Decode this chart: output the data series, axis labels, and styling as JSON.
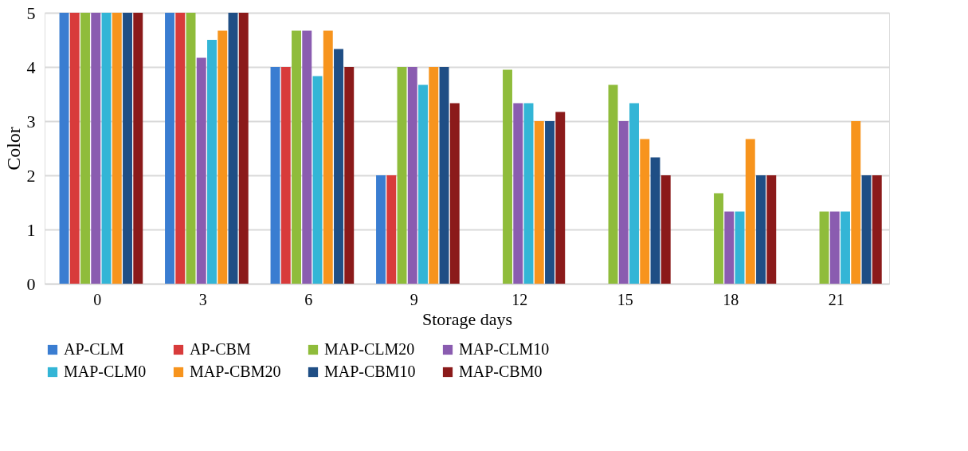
{
  "chart_data": {
    "type": "bar",
    "xlabel": "Storage days",
    "ylabel": "Color",
    "categories": [
      "0",
      "3",
      "6",
      "9",
      "12",
      "15",
      "18",
      "21"
    ],
    "ylim": [
      0,
      5
    ],
    "yticks": [
      0,
      1,
      2,
      3,
      4,
      5
    ],
    "grid": "y",
    "legend": "bottom",
    "series": [
      {
        "name": "AP-CLM",
        "color": "#3a7dd1",
        "values": [
          5,
          5,
          4,
          2,
          null,
          null,
          null,
          null
        ]
      },
      {
        "name": "AP-CBM",
        "color": "#d83b3b",
        "values": [
          5,
          5,
          4,
          2,
          null,
          null,
          null,
          null
        ]
      },
      {
        "name": "MAP-CLM20",
        "color": "#8fbc3b",
        "values": [
          5,
          5,
          4.67,
          4,
          3.95,
          3.67,
          1.67,
          1.33
        ]
      },
      {
        "name": "MAP-CLM10",
        "color": "#8a5cb0",
        "values": [
          5,
          4.17,
          4.67,
          4,
          3.33,
          3,
          1.33,
          1.33
        ]
      },
      {
        "name": "MAP-CLM0",
        "color": "#33b5d6",
        "values": [
          5,
          4.5,
          3.83,
          3.67,
          3.33,
          3.33,
          1.33,
          1.33
        ]
      },
      {
        "name": "MAP-CBM20",
        "color": "#f7941d",
        "values": [
          5,
          4.67,
          4.67,
          4,
          3,
          2.67,
          2.67,
          3
        ]
      },
      {
        "name": "MAP-CBM10",
        "color": "#1f4e85",
        "values": [
          5,
          5,
          4.33,
          4,
          3,
          2.33,
          2,
          2
        ]
      },
      {
        "name": "MAP-CBM0",
        "color": "#8b1a1a",
        "values": [
          5,
          5,
          4,
          3.33,
          3.17,
          2,
          2,
          2
        ]
      }
    ]
  }
}
